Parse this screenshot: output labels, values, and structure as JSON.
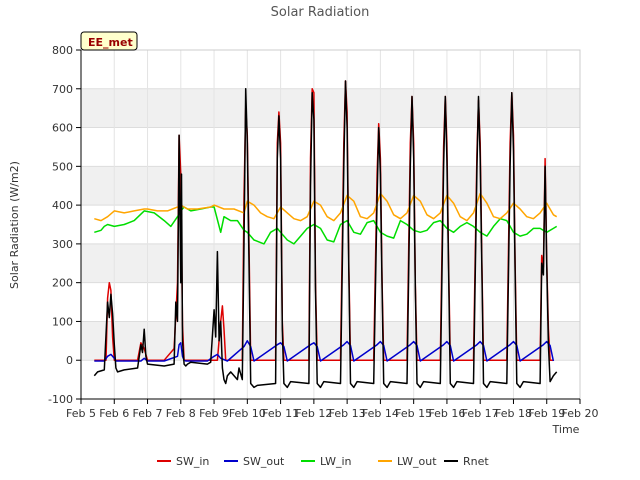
{
  "chart_data": {
    "type": "line",
    "title": "Solar Radiation",
    "xlabel": "Time",
    "ylabel": "Solar Radiation (W/m2)",
    "annotation": "EE_met",
    "xlim": [
      5.0,
      20.0
    ],
    "ylim": [
      -100,
      800
    ],
    "x_ticks": [
      {
        "value": 5,
        "label": "Feb 5"
      },
      {
        "value": 6,
        "label": "Feb 6"
      },
      {
        "value": 7,
        "label": "Feb 7"
      },
      {
        "value": 8,
        "label": "Feb 8"
      },
      {
        "value": 9,
        "label": "Feb 9"
      },
      {
        "value": 10,
        "label": "Feb 10"
      },
      {
        "value": 11,
        "label": "Feb 11"
      },
      {
        "value": 12,
        "label": "Feb 12"
      },
      {
        "value": 13,
        "label": "Feb 13"
      },
      {
        "value": 14,
        "label": "Feb 14"
      },
      {
        "value": 15,
        "label": "Feb 15"
      },
      {
        "value": 16,
        "label": "Feb 16"
      },
      {
        "value": 17,
        "label": "Feb 17"
      },
      {
        "value": 18,
        "label": "Feb 18"
      },
      {
        "value": 19,
        "label": "Feb 19"
      },
      {
        "value": 20,
        "label": "Feb 20"
      }
    ],
    "y_ticks": [
      -100,
      0,
      100,
      200,
      300,
      400,
      500,
      600,
      700,
      800
    ],
    "grid": true,
    "legend_position": "bottom",
    "series": [
      {
        "name": "SW_in",
        "color": "#dd0000",
        "x": [
          5.4,
          5.75,
          5.8,
          5.85,
          5.9,
          5.95,
          6.0,
          6.1,
          6.3,
          6.7,
          6.8,
          6.9,
          7.0,
          7.5,
          7.8,
          7.9,
          7.95,
          8.0,
          8.05,
          8.1,
          8.15,
          8.2,
          8.3,
          8.8,
          9.1,
          9.2,
          9.25,
          9.3,
          9.35,
          9.4,
          9.5,
          9.85,
          9.9,
          9.95,
          10.0,
          10.05,
          10.1,
          10.2,
          10.3,
          10.85,
          10.9,
          10.95,
          11.0,
          11.05,
          11.1,
          11.2,
          11.3,
          11.85,
          11.9,
          11.95,
          12.0,
          12.05,
          12.1,
          12.2,
          12.3,
          12.8,
          12.9,
          12.95,
          13.0,
          13.05,
          13.1,
          13.2,
          13.3,
          13.8,
          13.9,
          13.95,
          14.0,
          14.05,
          14.1,
          14.2,
          14.3,
          14.8,
          14.9,
          14.95,
          15.0,
          15.05,
          15.1,
          15.2,
          15.3,
          15.8,
          15.9,
          15.95,
          16.0,
          16.05,
          16.1,
          16.2,
          16.3,
          16.8,
          16.9,
          16.95,
          17.0,
          17.05,
          17.1,
          17.2,
          17.3,
          17.8,
          17.9,
          17.95,
          18.0,
          18.05,
          18.1,
          18.2,
          18.3,
          18.8,
          18.85,
          18.9,
          18.95,
          19.0,
          19.05,
          19.1,
          19.2
        ],
        "y": [
          0,
          0,
          160,
          200,
          180,
          60,
          0,
          0,
          0,
          0,
          45,
          30,
          0,
          0,
          30,
          200,
          580,
          480,
          90,
          0,
          0,
          0,
          0,
          0,
          0,
          100,
          140,
          80,
          0,
          0,
          0,
          0,
          420,
          650,
          580,
          300,
          0,
          0,
          0,
          0,
          560,
          640,
          560,
          100,
          0,
          0,
          0,
          0,
          520,
          700,
          690,
          200,
          0,
          0,
          0,
          0,
          560,
          720,
          640,
          250,
          0,
          0,
          0,
          0,
          480,
          610,
          520,
          200,
          0,
          0,
          0,
          0,
          560,
          680,
          560,
          200,
          0,
          0,
          0,
          0,
          550,
          680,
          560,
          250,
          0,
          0,
          0,
          0,
          530,
          670,
          560,
          250,
          0,
          0,
          0,
          0,
          560,
          690,
          580,
          250,
          0,
          0,
          0,
          0,
          270,
          240,
          520,
          260,
          80,
          0,
          0
        ]
      },
      {
        "name": "SW_out",
        "color": "#0000cc",
        "x": [
          5.4,
          5.7,
          5.8,
          5.9,
          6.0,
          6.05,
          6.5,
          6.8,
          6.9,
          7.0,
          7.5,
          7.9,
          7.95,
          8.0,
          8.05,
          8.1,
          8.15,
          8.2,
          8.8,
          9.0,
          9.1,
          9.2,
          9.4,
          9.9,
          10.0,
          10.1,
          10.2,
          10.9,
          11.0,
          11.1,
          11.2,
          11.9,
          12.0,
          12.1,
          12.2,
          12.9,
          13.0,
          13.1,
          13.2,
          13.9,
          14.0,
          14.1,
          14.2,
          14.9,
          15.0,
          15.1,
          15.2,
          15.9,
          16.0,
          16.1,
          16.2,
          16.9,
          17.0,
          17.1,
          17.2,
          17.9,
          18.0,
          18.1,
          18.2,
          18.9,
          19.0,
          19.1,
          19.2
        ],
        "y": [
          -2,
          -2,
          10,
          15,
          5,
          -2,
          -2,
          -2,
          5,
          -2,
          -2,
          10,
          40,
          45,
          10,
          0,
          -2,
          -2,
          -2,
          10,
          15,
          5,
          -2,
          35,
          50,
          35,
          -2,
          40,
          45,
          35,
          -2,
          40,
          45,
          35,
          -2,
          40,
          48,
          38,
          -2,
          40,
          48,
          38,
          -2,
          40,
          48,
          38,
          -2,
          40,
          48,
          38,
          -2,
          40,
          48,
          38,
          -2,
          40,
          48,
          38,
          -2,
          40,
          48,
          38,
          -2
        ]
      },
      {
        "name": "LW_in",
        "color": "#00dd00",
        "x": [
          5.4,
          5.6,
          5.7,
          5.8,
          6.0,
          6.3,
          6.6,
          6.9,
          7.2,
          7.5,
          7.7,
          7.9,
          8.0,
          8.1,
          8.3,
          8.6,
          8.9,
          9.0,
          9.2,
          9.3,
          9.5,
          9.7,
          9.9,
          10.0,
          10.2,
          10.5,
          10.7,
          10.9,
          11.0,
          11.2,
          11.4,
          11.6,
          11.8,
          12.0,
          12.2,
          12.4,
          12.6,
          12.8,
          13.0,
          13.2,
          13.4,
          13.6,
          13.8,
          14.0,
          14.2,
          14.4,
          14.6,
          14.8,
          15.0,
          15.2,
          15.4,
          15.6,
          15.8,
          16.0,
          16.2,
          16.4,
          16.6,
          16.8,
          17.0,
          17.2,
          17.4,
          17.6,
          17.8,
          18.0,
          18.2,
          18.4,
          18.6,
          18.8,
          19.0,
          19.2,
          19.3
        ],
        "y": [
          330,
          335,
          345,
          350,
          345,
          350,
          360,
          385,
          380,
          360,
          345,
          370,
          385,
          395,
          385,
          390,
          395,
          395,
          330,
          370,
          360,
          360,
          335,
          330,
          310,
          300,
          330,
          340,
          330,
          310,
          300,
          320,
          340,
          350,
          340,
          310,
          305,
          350,
          360,
          330,
          325,
          355,
          360,
          330,
          320,
          315,
          360,
          350,
          335,
          330,
          335,
          355,
          360,
          340,
          330,
          345,
          355,
          345,
          330,
          320,
          345,
          365,
          360,
          330,
          320,
          325,
          340,
          340,
          330,
          340,
          345
        ]
      },
      {
        "name": "LW_out",
        "color": "#ffa500",
        "x": [
          5.4,
          5.6,
          5.8,
          6.0,
          6.3,
          6.6,
          6.9,
          7.0,
          7.3,
          7.6,
          7.9,
          8.0,
          8.2,
          8.5,
          8.9,
          9.0,
          9.3,
          9.6,
          9.9,
          10.0,
          10.2,
          10.4,
          10.6,
          10.8,
          11.0,
          11.2,
          11.4,
          11.6,
          11.8,
          12.0,
          12.2,
          12.4,
          12.6,
          12.8,
          13.0,
          13.2,
          13.4,
          13.6,
          13.8,
          14.0,
          14.2,
          14.4,
          14.6,
          14.8,
          15.0,
          15.2,
          15.4,
          15.6,
          15.8,
          16.0,
          16.2,
          16.4,
          16.6,
          16.8,
          17.0,
          17.2,
          17.4,
          17.6,
          17.8,
          18.0,
          18.2,
          18.4,
          18.6,
          18.8,
          19.0,
          19.2,
          19.3
        ],
        "y": [
          365,
          360,
          370,
          385,
          380,
          385,
          390,
          390,
          385,
          385,
          395,
          400,
          390,
          390,
          395,
          400,
          390,
          390,
          380,
          410,
          400,
          380,
          370,
          365,
          395,
          380,
          365,
          360,
          370,
          410,
          400,
          370,
          360,
          380,
          425,
          410,
          370,
          365,
          380,
          430,
          410,
          375,
          365,
          380,
          425,
          410,
          375,
          365,
          380,
          425,
          405,
          370,
          360,
          380,
          430,
          405,
          370,
          365,
          380,
          405,
          390,
          370,
          365,
          380,
          405,
          375,
          370
        ]
      },
      {
        "name": "Rnet",
        "color": "#000000",
        "x": [
          5.4,
          5.5,
          5.7,
          5.8,
          5.85,
          5.9,
          5.95,
          6.0,
          6.05,
          6.1,
          6.3,
          6.7,
          6.8,
          6.85,
          6.9,
          6.95,
          7.0,
          7.5,
          7.8,
          7.85,
          7.9,
          7.95,
          8.0,
          8.02,
          8.05,
          8.1,
          8.15,
          8.2,
          8.3,
          8.8,
          8.9,
          9.0,
          9.05,
          9.1,
          9.15,
          9.2,
          9.25,
          9.3,
          9.35,
          9.4,
          9.5,
          9.7,
          9.75,
          9.85,
          9.9,
          9.95,
          10.0,
          10.05,
          10.1,
          10.2,
          10.3,
          10.85,
          10.9,
          10.95,
          11.0,
          11.05,
          11.1,
          11.2,
          11.3,
          11.85,
          11.9,
          11.95,
          12.0,
          12.05,
          12.1,
          12.2,
          12.3,
          12.8,
          12.9,
          12.95,
          13.0,
          13.05,
          13.1,
          13.2,
          13.3,
          13.8,
          13.9,
          13.95,
          14.0,
          14.05,
          14.1,
          14.2,
          14.3,
          14.8,
          14.9,
          14.95,
          15.0,
          15.05,
          15.1,
          15.2,
          15.3,
          15.8,
          15.9,
          15.95,
          16.0,
          16.05,
          16.1,
          16.2,
          16.3,
          16.8,
          16.9,
          16.95,
          17.0,
          17.05,
          17.1,
          17.2,
          17.3,
          17.8,
          17.9,
          17.95,
          18.0,
          18.05,
          18.1,
          18.2,
          18.3,
          18.8,
          18.85,
          18.9,
          18.95,
          19.0,
          19.05,
          19.1,
          19.2,
          19.3
        ],
        "y": [
          -40,
          -30,
          -25,
          150,
          110,
          170,
          120,
          40,
          -20,
          -30,
          -25,
          -20,
          40,
          20,
          80,
          10,
          -10,
          -15,
          -10,
          150,
          100,
          580,
          200,
          480,
          50,
          -10,
          -15,
          -10,
          -5,
          -10,
          -5,
          130,
          60,
          280,
          50,
          100,
          -20,
          -50,
          -60,
          -40,
          -30,
          -50,
          -20,
          -50,
          300,
          700,
          560,
          250,
          -60,
          -70,
          -65,
          -60,
          520,
          630,
          520,
          80,
          -60,
          -70,
          -55,
          -60,
          450,
          690,
          620,
          180,
          -60,
          -70,
          -55,
          -60,
          500,
          720,
          600,
          230,
          -60,
          -70,
          -55,
          -60,
          420,
          600,
          480,
          180,
          -60,
          -70,
          -55,
          -60,
          500,
          680,
          520,
          190,
          -60,
          -70,
          -55,
          -60,
          500,
          680,
          520,
          230,
          -60,
          -70,
          -55,
          -60,
          490,
          680,
          520,
          230,
          -60,
          -70,
          -55,
          -60,
          500,
          690,
          540,
          230,
          -60,
          -70,
          -55,
          -60,
          250,
          220,
          500,
          250,
          40,
          -55,
          -40,
          -30
        ]
      }
    ]
  }
}
